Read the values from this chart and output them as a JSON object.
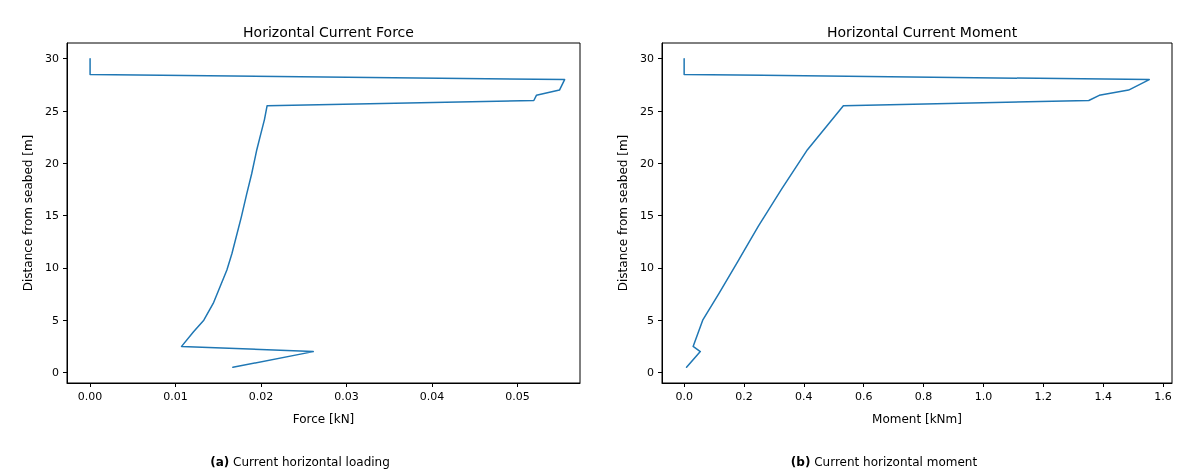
{
  "chart_data": [
    {
      "type": "line",
      "title": "Horizontal Current Force",
      "xlabel": "Force [kN]",
      "ylabel": "Distance from seabed [m]",
      "annotations": [
        "(a) Current horizontal loading"
      ],
      "series": [
        {
          "color": "#1f77b4",
          "x": [
            0,
            0,
            0.0555,
            0.0549,
            0.0522,
            0.0519,
            0.0207,
            0.0204,
            0.0199,
            0.0195,
            0.0189,
            0.0183,
            0.0177,
            0.0166,
            0.016,
            0.0152,
            0.0144,
            0.0133,
            0.0121,
            0.0107,
            0.0261,
            0.0167
          ],
          "values": [
            30,
            28.5,
            28,
            27,
            26.5,
            26,
            25.5,
            24.2,
            22.6,
            21.3,
            19,
            17,
            14.9,
            11.4,
            9.8,
            8.2,
            6.6,
            5,
            3.9,
            2.5,
            2,
            0.5
          ]
        }
      ],
      "xlim": [
        -0.0027,
        0.0573
      ],
      "xticks": [
        {
          "value": 0,
          "label": "0.00"
        },
        {
          "value": 0.01,
          "label": "0.01"
        },
        {
          "value": 0.02,
          "label": "0.02"
        },
        {
          "value": 0.03,
          "label": "0.03"
        },
        {
          "value": 0.04,
          "label": "0.04"
        },
        {
          "value": 0.05,
          "label": "0.05"
        }
      ],
      "ylim": [
        -1,
        31.5
      ],
      "yticks": [
        0,
        5,
        10,
        15,
        20,
        25,
        30
      ],
      "grid": false,
      "line_style": "solid",
      "marker": "none"
    },
    {
      "type": "line",
      "title": "Horizontal Current Moment",
      "xlabel": "Moment [kNm]",
      "ylabel": "Distance from seabed [m]",
      "annotations": [
        "(b) Current horizontal moment"
      ],
      "series": [
        {
          "color": "#1f77b4",
          "x": [
            0,
            0,
            1.554,
            1.485,
            1.387,
            1.352,
            0.532,
            0.412,
            0.325,
            0.248,
            0.183,
            0.117,
            0.062,
            0.03,
            0.054,
            0.008
          ],
          "values": [
            30,
            28.5,
            28,
            27,
            26.5,
            26,
            25.5,
            21.3,
            17.5,
            14,
            10.8,
            7.6,
            5,
            2.5,
            2,
            0.5
          ]
        }
      ],
      "xlim": [
        -0.074,
        1.63
      ],
      "xticks": [
        {
          "value": 0,
          "label": "0.0"
        },
        {
          "value": 0.2,
          "label": "0.2"
        },
        {
          "value": 0.4,
          "label": "0.4"
        },
        {
          "value": 0.6,
          "label": "0.6"
        },
        {
          "value": 0.8,
          "label": "0.8"
        },
        {
          "value": 1,
          "label": "1.0"
        },
        {
          "value": 1.2,
          "label": "1.2"
        },
        {
          "value": 1.4,
          "label": "1.4"
        },
        {
          "value": 1.6,
          "label": "1.6"
        }
      ],
      "ylim": [
        -1,
        31.5
      ],
      "yticks": [
        0,
        5,
        10,
        15,
        20,
        25,
        30
      ],
      "grid": false,
      "line_style": "solid",
      "marker": "none"
    }
  ]
}
